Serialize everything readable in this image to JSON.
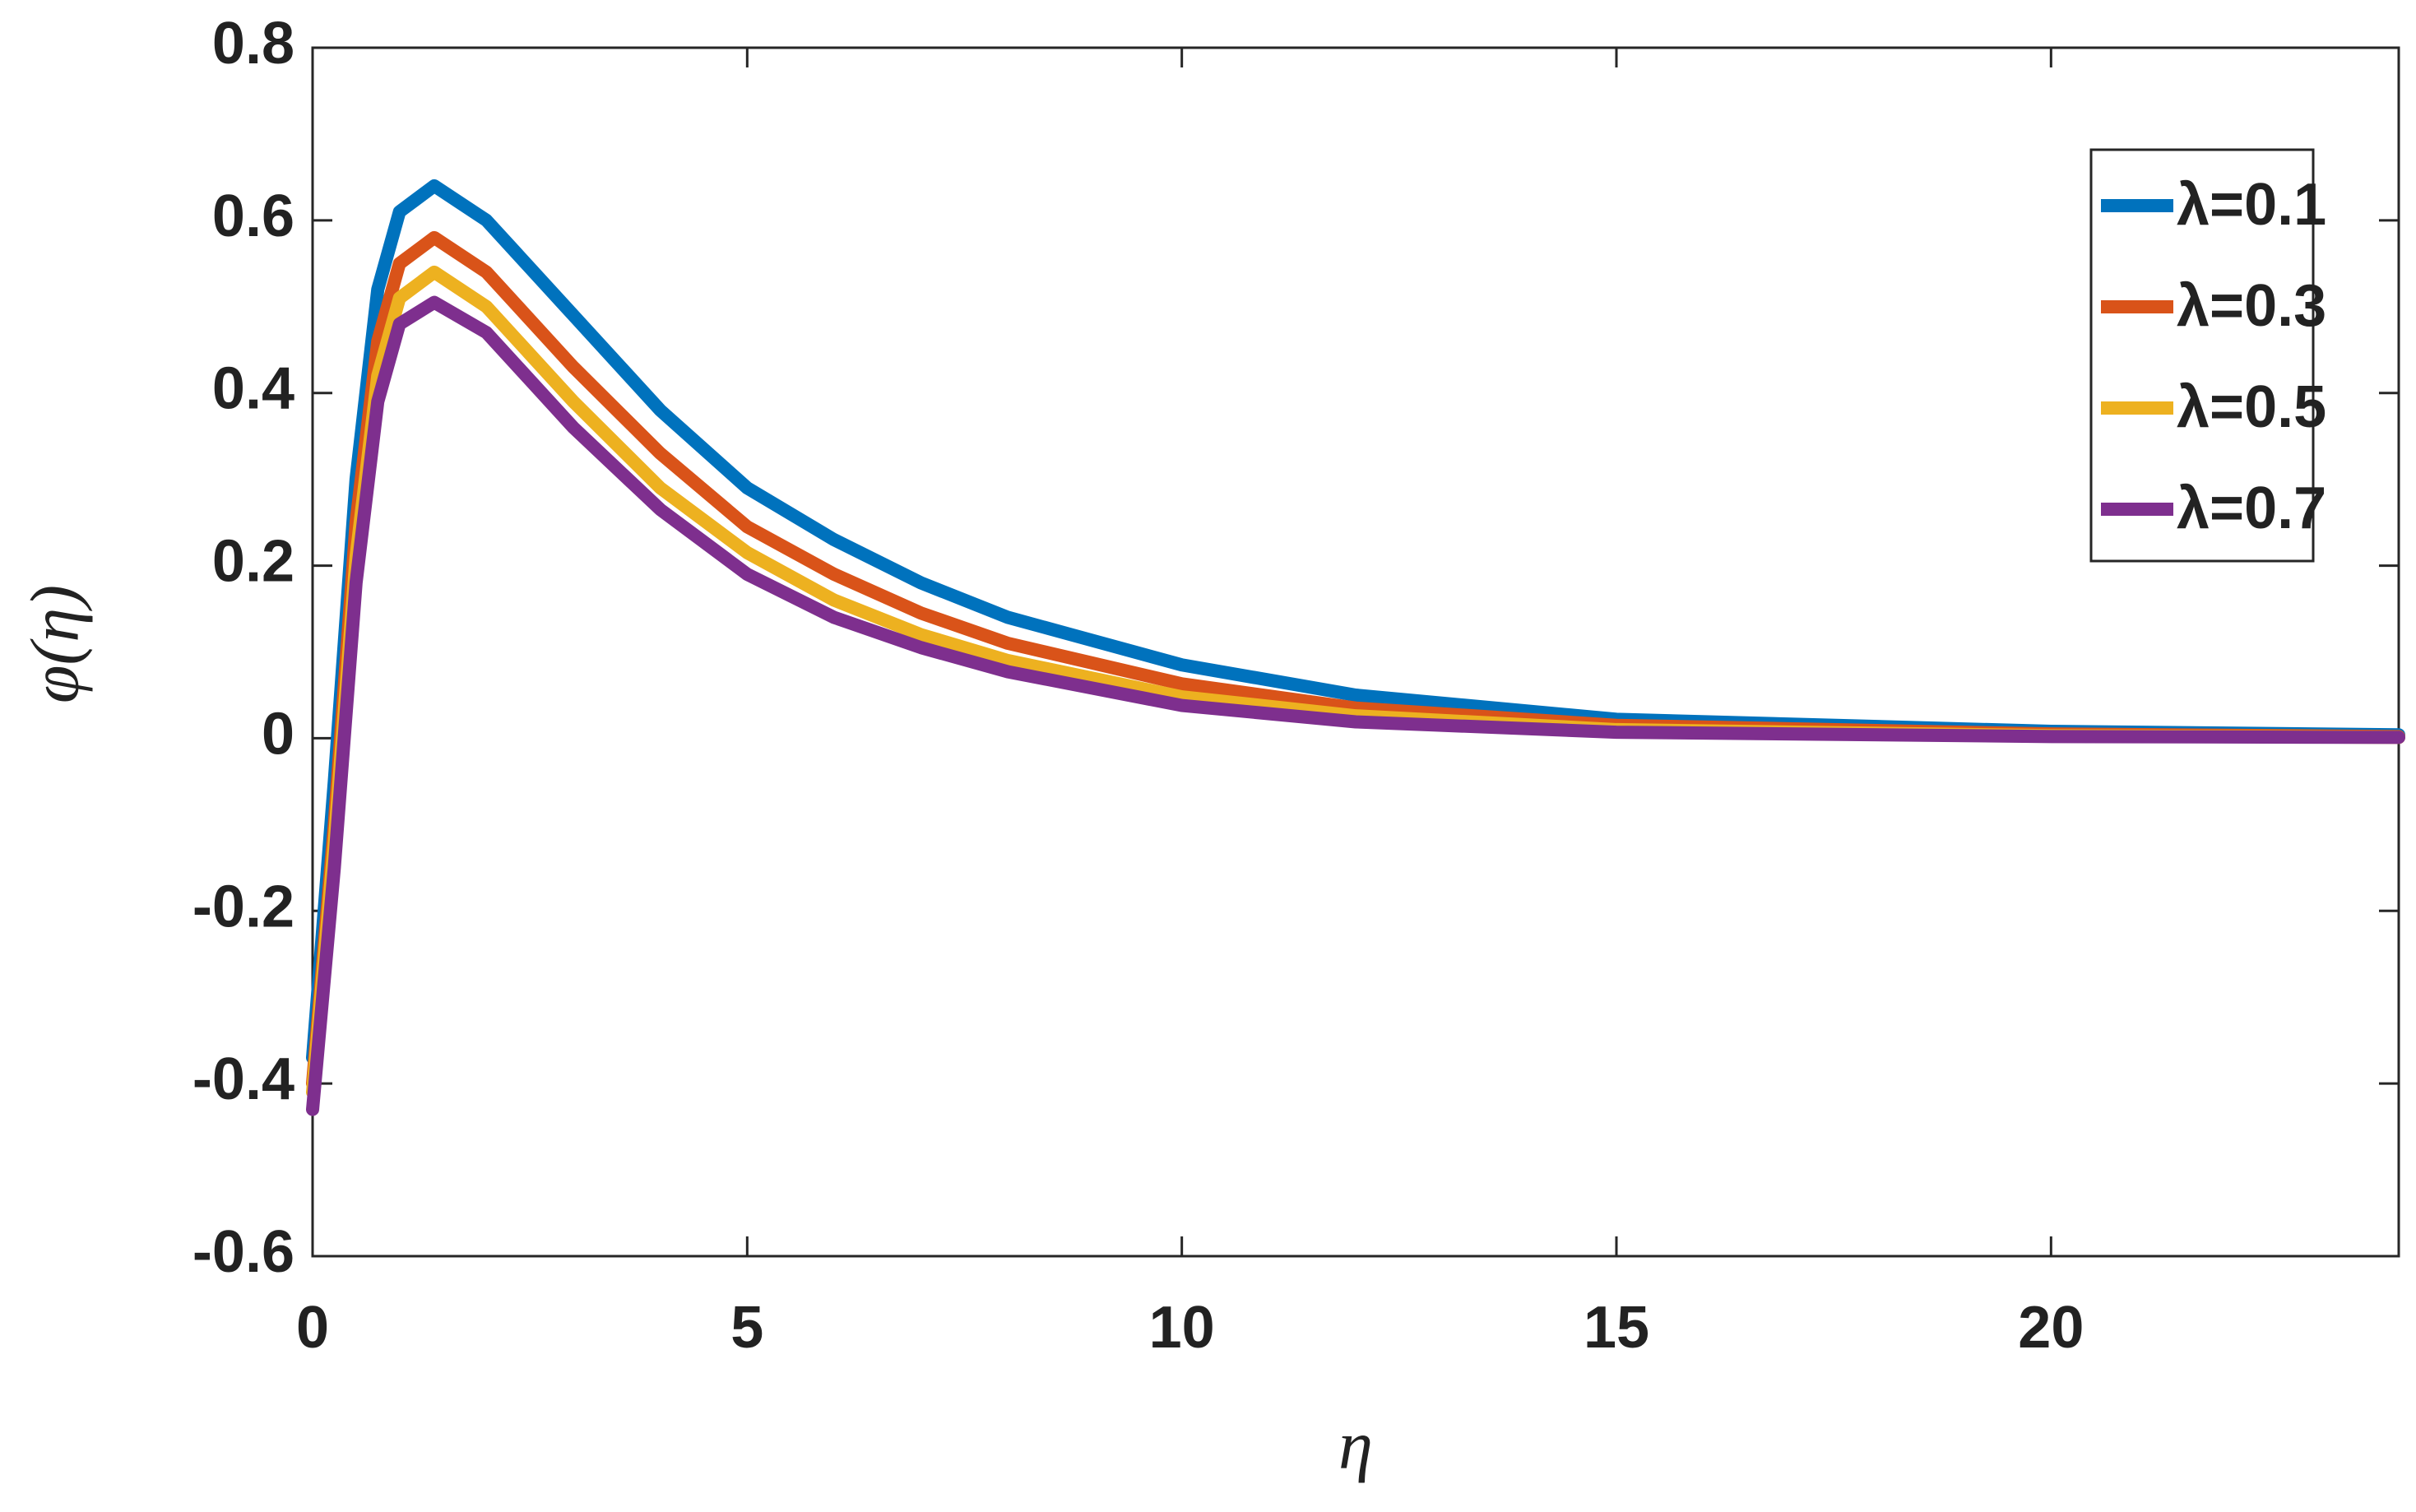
{
  "chart_data": {
    "type": "line",
    "xlabel": "η",
    "ylabel": "φ(η)",
    "x": [
      0,
      0.25,
      0.5,
      0.75,
      1,
      1.4,
      2,
      3,
      4,
      5,
      6,
      7,
      8,
      10,
      12,
      15,
      20,
      24
    ],
    "series": [
      {
        "name": "λ=0.1",
        "color": "#0072bd",
        "values": [
          -0.37,
          -0.05,
          0.3,
          0.52,
          0.61,
          0.64,
          0.6,
          0.49,
          0.38,
          0.29,
          0.23,
          0.18,
          0.14,
          0.085,
          0.05,
          0.022,
          0.008,
          0.004
        ]
      },
      {
        "name": "λ=0.3",
        "color": "#d95319",
        "values": [
          -0.4,
          -0.1,
          0.25,
          0.46,
          0.55,
          0.58,
          0.54,
          0.43,
          0.33,
          0.245,
          0.19,
          0.145,
          0.11,
          0.063,
          0.035,
          0.015,
          0.005,
          0.002
        ]
      },
      {
        "name": "λ=0.5",
        "color": "#edb120",
        "values": [
          -0.41,
          -0.12,
          0.21,
          0.42,
          0.51,
          0.54,
          0.5,
          0.39,
          0.29,
          0.215,
          0.16,
          0.12,
          0.09,
          0.048,
          0.026,
          0.01,
          0.003,
          0.001
        ]
      },
      {
        "name": "λ=0.7",
        "color": "#7e2f8e",
        "values": [
          -0.43,
          -0.15,
          0.18,
          0.39,
          0.48,
          0.505,
          0.47,
          0.36,
          0.265,
          0.19,
          0.14,
          0.105,
          0.077,
          0.038,
          0.019,
          0.007,
          0.002,
          0.001
        ]
      }
    ],
    "xlim": [
      0,
      24
    ],
    "xticks": [
      0,
      5,
      10,
      15,
      20
    ],
    "ylim": [
      -0.6,
      0.8
    ],
    "yticks": [
      -0.6,
      -0.4,
      -0.2,
      0,
      0.2,
      0.4,
      0.6,
      0.8
    ],
    "legend": "upper-right"
  }
}
